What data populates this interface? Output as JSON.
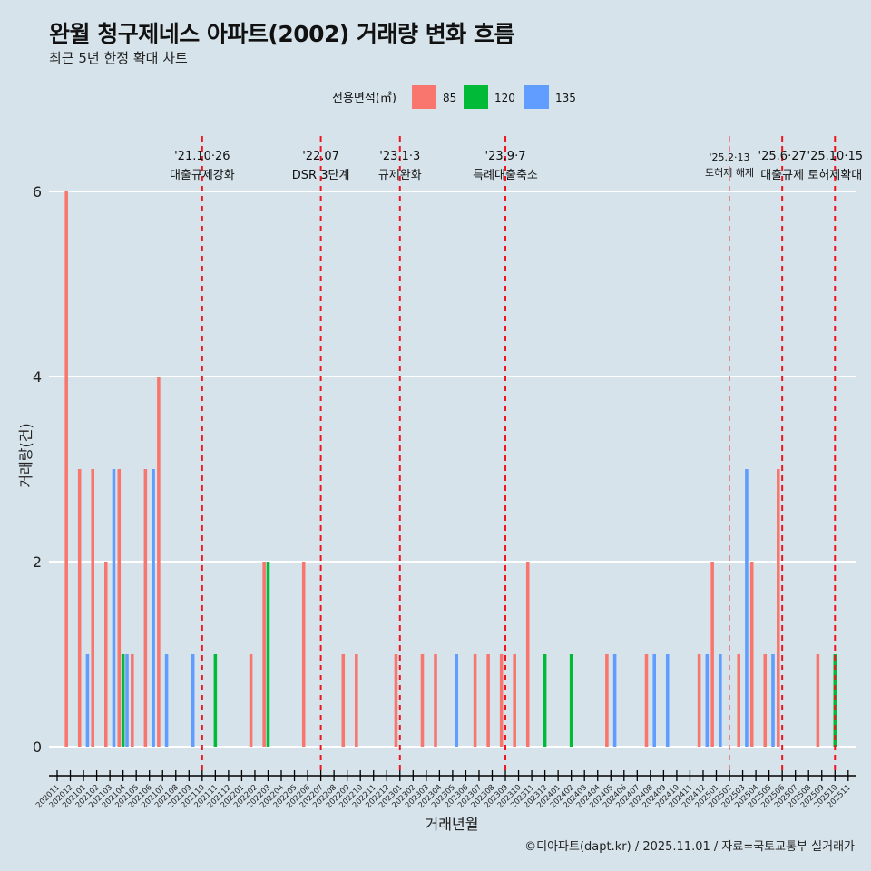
{
  "title": "완월 청구제네스 아파트(2002) 거래량 변화 흐름",
  "subtitle": "최근 5년 한정 확대 차트",
  "caption": "©디아파트(dapt.kr) / 2025.11.01 / 자료=국토교통부 실거래가",
  "chart_data": {
    "type": "bar",
    "xlabel": "거래년월",
    "ylabel": "거래량(건)",
    "ylim": [
      0,
      6
    ],
    "yticks": [
      0,
      2,
      4,
      6
    ],
    "grid": true,
    "legend": {
      "title": "전용면적(㎡)",
      "placement": "top",
      "entries": [
        "85",
        "120",
        "135"
      ]
    },
    "colors": {
      "85": "#f8766d",
      "120": "#00ba38",
      "135": "#619cff"
    },
    "categories": [
      "202011",
      "202012",
      "202101",
      "202102",
      "202103",
      "202104",
      "202105",
      "202106",
      "202107",
      "202108",
      "202109",
      "202110",
      "202111",
      "202112",
      "202201",
      "202202",
      "202203",
      "202204",
      "202205",
      "202206",
      "202207",
      "202208",
      "202209",
      "202210",
      "202211",
      "202212",
      "202301",
      "202302",
      "202303",
      "202304",
      "202305",
      "202306",
      "202307",
      "202308",
      "202309",
      "202310",
      "202311",
      "202312",
      "202401",
      "202402",
      "202403",
      "202404",
      "202405",
      "202406",
      "202407",
      "202408",
      "202409",
      "202410",
      "202411",
      "202412",
      "202501",
      "202502",
      "202503",
      "202504",
      "202505",
      "202506",
      "202507",
      "202508",
      "202509",
      "202510",
      "202511"
    ],
    "series": [
      {
        "name": "85",
        "points": [
          [
            "202012",
            6
          ],
          [
            "202101",
            3
          ],
          [
            "202102",
            3
          ],
          [
            "202103",
            2
          ],
          [
            "202104",
            3
          ],
          [
            "202105",
            1
          ],
          [
            "202106",
            3
          ],
          [
            "202107",
            4
          ],
          [
            "202202",
            1
          ],
          [
            "202203",
            2
          ],
          [
            "202206",
            2
          ],
          [
            "202209",
            1
          ],
          [
            "202210",
            1
          ],
          [
            "202301",
            1
          ],
          [
            "202303",
            1
          ],
          [
            "202304",
            1
          ],
          [
            "202307",
            1
          ],
          [
            "202308",
            1
          ],
          [
            "202309",
            1
          ],
          [
            "202310",
            1
          ],
          [
            "202311",
            2
          ],
          [
            "202405",
            1
          ],
          [
            "202408",
            1
          ],
          [
            "202412",
            1
          ],
          [
            "202501",
            2
          ],
          [
            "202503",
            1
          ],
          [
            "202504",
            2
          ],
          [
            "202505",
            1
          ],
          [
            "202506",
            3
          ],
          [
            "202509",
            1
          ]
        ]
      },
      {
        "name": "120",
        "points": [
          [
            "202104",
            1
          ],
          [
            "202111",
            1
          ],
          [
            "202203",
            2
          ],
          [
            "202312",
            1
          ],
          [
            "202402",
            1
          ],
          [
            "202510",
            1
          ]
        ]
      },
      {
        "name": "135",
        "points": [
          [
            "202101",
            1
          ],
          [
            "202103",
            3
          ],
          [
            "202104",
            1
          ],
          [
            "202106",
            3
          ],
          [
            "202107",
            1
          ],
          [
            "202109",
            1
          ],
          [
            "202305",
            1
          ],
          [
            "202405",
            1
          ],
          [
            "202408",
            1
          ],
          [
            "202409",
            1
          ],
          [
            "202412",
            1
          ],
          [
            "202501",
            1
          ],
          [
            "202503",
            3
          ],
          [
            "202505",
            1
          ]
        ]
      }
    ],
    "annotations": [
      {
        "month": "202110",
        "date": "'21.10·26",
        "label": "대출규제강화",
        "minor": false
      },
      {
        "month": "202207",
        "date": "'22.07",
        "label": "DSR 3단계",
        "minor": false
      },
      {
        "month": "202301",
        "date": "'23.1·3",
        "label": "규제완화",
        "minor": false
      },
      {
        "month": "202309",
        "date": "'23.9·7",
        "label": "특례대출축소",
        "minor": false
      },
      {
        "month": "202502",
        "date": "'25.2·13",
        "label": "토허제 해제",
        "minor": true
      },
      {
        "month": "202506",
        "date": "'25.6·27",
        "label": "대출규제",
        "minor": false
      },
      {
        "month": "202510",
        "date": "'25.10·15",
        "label": "토허제확대",
        "minor": false
      }
    ]
  }
}
